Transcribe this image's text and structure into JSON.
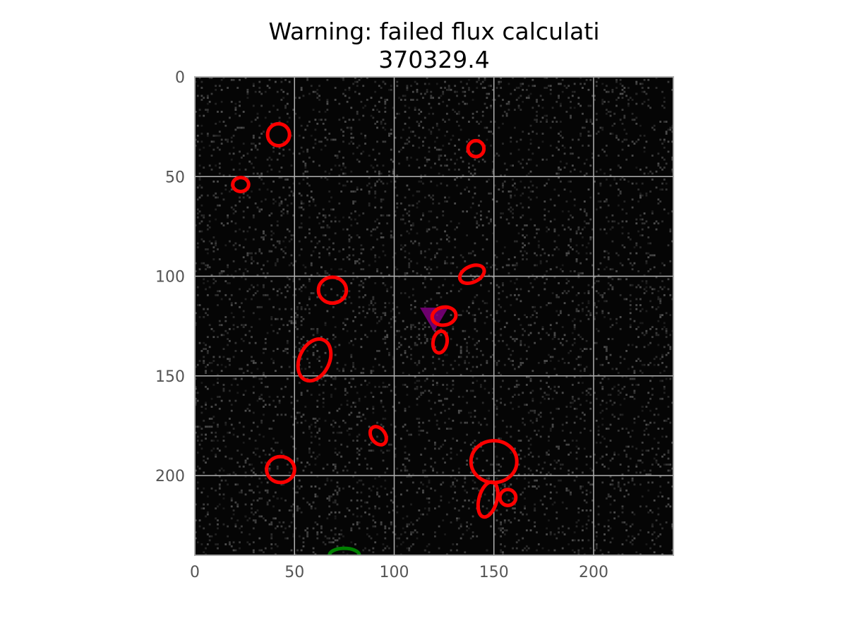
{
  "chart_data": {
    "type": "scatter",
    "title_line1": "Warning: failed flux calculati",
    "title_line2": "370329.4",
    "xlabel": "",
    "ylabel": "",
    "xlim": [
      0,
      240
    ],
    "ylim": [
      240,
      0
    ],
    "y_inverted": true,
    "grid": true,
    "x_ticks": [
      "0",
      "50",
      "100",
      "150",
      "200"
    ],
    "y_ticks": [
      "0",
      "50",
      "100",
      "150",
      "200"
    ],
    "background": "noise image (dark grey/black)",
    "colors": {
      "detections": "#ff0000",
      "flagged": "#008000",
      "target": "#800080",
      "grid": "#b0b0b0",
      "image_bg": "#050505"
    },
    "red_ellipses": [
      {
        "x": 42,
        "y": 29,
        "rx": 5.5,
        "ry": 5.5,
        "angle": 0
      },
      {
        "x": 141,
        "y": 36,
        "rx": 4,
        "ry": 4,
        "angle": 0
      },
      {
        "x": 23,
        "y": 54,
        "rx": 4,
        "ry": 3.5,
        "angle": 0
      },
      {
        "x": 139,
        "y": 99,
        "rx": 6.5,
        "ry": 4,
        "angle": -25
      },
      {
        "x": 69,
        "y": 107,
        "rx": 7,
        "ry": 6.5,
        "angle": 0
      },
      {
        "x": 125,
        "y": 120,
        "rx": 6,
        "ry": 4.5,
        "angle": -10
      },
      {
        "x": 123,
        "y": 133,
        "rx": 3.5,
        "ry": 5.5,
        "angle": 10
      },
      {
        "x": 60,
        "y": 142,
        "rx": 7.5,
        "ry": 11,
        "angle": 25
      },
      {
        "x": 92,
        "y": 180,
        "rx": 3.5,
        "ry": 5,
        "angle": -35
      },
      {
        "x": 150,
        "y": 193,
        "rx": 11.5,
        "ry": 10.5,
        "angle": 0
      },
      {
        "x": 43,
        "y": 197,
        "rx": 7,
        "ry": 6.5,
        "angle": 0
      },
      {
        "x": 147,
        "y": 212,
        "rx": 4.5,
        "ry": 9,
        "angle": 15
      },
      {
        "x": 157,
        "y": 211,
        "rx": 4,
        "ry": 4,
        "angle": 0
      }
    ],
    "green_ellipses": [
      {
        "x": 75,
        "y": 240,
        "rx": 7.5,
        "ry": 3.5,
        "angle": 0
      }
    ],
    "target_marker": {
      "x": 120,
      "y": 120,
      "symbol": "triangle-down"
    }
  }
}
